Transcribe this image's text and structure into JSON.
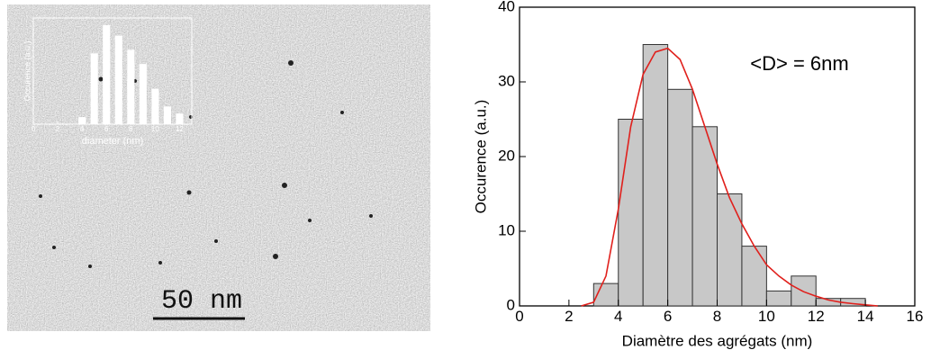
{
  "image": {
    "scale_bar_label": "50 nm"
  },
  "chart_data": [
    {
      "type": "bar",
      "x_label": "diameter (nm)",
      "y_label": "Occurence (a.u.)",
      "x": [
        4,
        5,
        6,
        7,
        8,
        9,
        10,
        11,
        12
      ],
      "values": [
        1,
        10,
        14,
        12.5,
        10.5,
        8.5,
        5,
        2.5,
        1.5
      ],
      "color": "#ffffff",
      "xlim": [
        0,
        13
      ],
      "ylim": [
        0,
        15
      ],
      "xticks": [
        0,
        2,
        4,
        6,
        8,
        10,
        12
      ]
    },
    {
      "type": "histogram",
      "x_label": "Diamètre des agrégats (nm)",
      "y_label": "Occurence (a.u.)",
      "annotation": "<D> = 6nm",
      "bins": [
        3,
        4,
        5,
        6,
        7,
        8,
        9,
        10,
        11,
        12,
        13,
        14
      ],
      "counts": [
        3,
        25,
        35,
        29,
        24,
        15,
        8,
        2,
        4,
        1,
        1
      ],
      "color": "#c8c8c8",
      "fit": {
        "color": "#e0201c",
        "x": [
          2.5,
          3,
          3.5,
          4,
          4.5,
          5,
          5.5,
          6,
          6.5,
          7,
          7.5,
          8,
          8.5,
          9,
          9.5,
          10,
          10.5,
          11,
          11.5,
          12,
          12.5,
          13,
          13.5,
          14,
          14.5
        ],
        "y": [
          0,
          0.5,
          4,
          13,
          24,
          31,
          34,
          34.5,
          33,
          29,
          24,
          19,
          14.5,
          11,
          8,
          5.5,
          4,
          2.8,
          1.9,
          1.3,
          0.8,
          0.5,
          0.3,
          0.15,
          0
        ]
      },
      "xlim": [
        0,
        16
      ],
      "ylim": [
        0,
        40
      ],
      "xticks": [
        0,
        2,
        4,
        6,
        8,
        10,
        12,
        14,
        16
      ],
      "yticks": [
        0,
        10,
        20,
        30,
        40
      ]
    }
  ]
}
